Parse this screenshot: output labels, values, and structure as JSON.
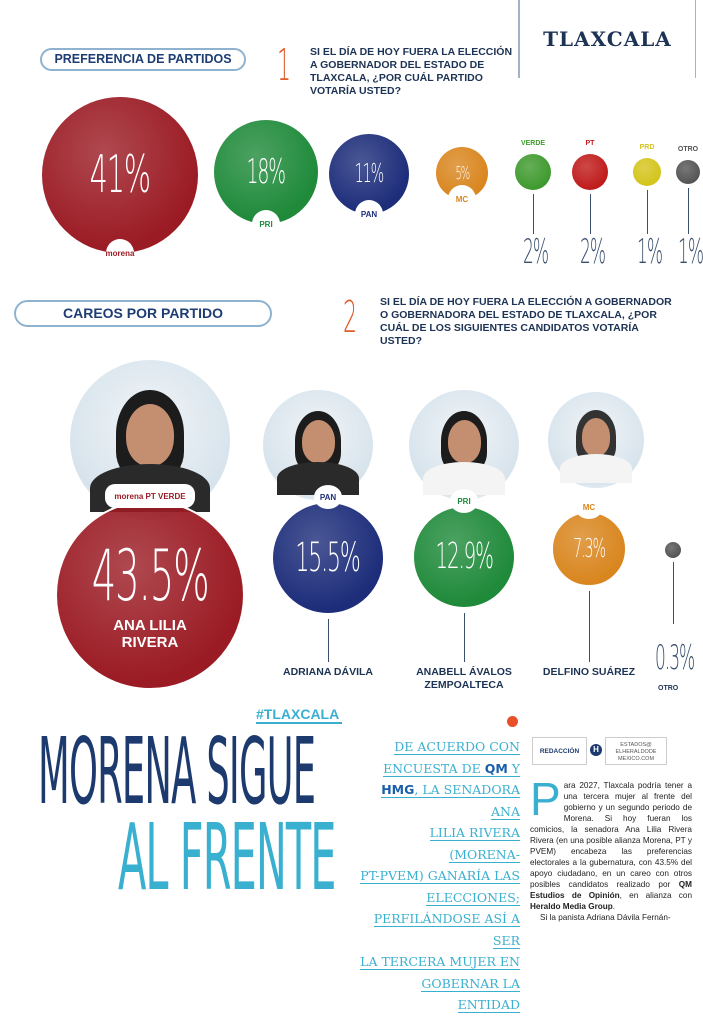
{
  "section_label": "TLAXCALA",
  "q1": {
    "title": "PREFERENCIA DE PARTIDOS",
    "number": "1",
    "question": "SI EL DÍA DE HOY FUERA LA ELECCIÓN A GOBERNADOR DEL ESTADO DE TLAXCALA, ¿POR CUÁL PARTIDO VOTARÍA USTED?",
    "parties": [
      {
        "party": "morena",
        "value": "41%",
        "color": "#9b1b24"
      },
      {
        "party": "PRI",
        "value": "18%",
        "color": "#1f8a3a"
      },
      {
        "party": "PAN",
        "value": "11%",
        "color": "#1d2d7a"
      },
      {
        "party": "MC",
        "value": "5%",
        "color": "#d9861f"
      },
      {
        "party": "VERDE",
        "value": "2%",
        "color": "#3f9a2e"
      },
      {
        "party": "PT",
        "value": "2%",
        "color": "#c01b1b"
      },
      {
        "party": "PRD",
        "value": "1%",
        "color": "#d4c41c"
      },
      {
        "party": "OTRO",
        "value": "1%",
        "color": "#555555"
      }
    ]
  },
  "q2": {
    "title": "CAREOS POR PARTIDO",
    "number": "2",
    "question": "SI EL DÍA DE HOY FUERA LA ELECCIÓN A GOBERNADOR O GOBERNADORA DEL ESTADO DE TLAXCALA, ¿POR CUÁL DE LOS SIGUIENTES CANDIDATOS VOTARÍA USTED?",
    "candidates": [
      {
        "name": "ANA LILIA RIVERA",
        "value": "43.5%",
        "parties": "morena PT VERDE",
        "color": "#9b1b24"
      },
      {
        "name": "ADRIANA DÁVILA",
        "value": "15.5%",
        "parties": "PAN",
        "color": "#1d2d7a"
      },
      {
        "name": "ANABELL ÁVALOS ZEMPOALTECA",
        "value": "12.9%",
        "parties": "PRI",
        "color": "#1f8a3a"
      },
      {
        "name": "DELFINO SUÁREZ",
        "value": "7.3%",
        "parties": "MC",
        "color": "#d9861f"
      },
      {
        "name": "OTRO",
        "value": "0.3%",
        "color": "#555555"
      }
    ]
  },
  "article": {
    "hashtag": "#TLAXCALA",
    "headline_1": "MORENA SIGUE",
    "headline_2": "AL FRENTE",
    "deck": [
      "DE ACUERDO CON",
      "ENCUESTA DE ",
      "QM",
      " Y",
      "HMG",
      ", LA SENADORA ANA",
      "LILIA RIVERA (MORENA-",
      "PT-PVEM) GANARÍA LAS",
      "ELECCIONES;",
      "PERFILÁNDOSE ASÍ A SER",
      "LA TERCERA MUJER EN",
      "GOBERNAR LA ENTIDAD"
    ],
    "byline": "REDACCIÓN",
    "email": "ESTADOS@ ELHERALDODE MEXICO.COM",
    "logo": "H",
    "dropcap": "P",
    "body_1": "ara 2027, Tlaxcala podría tener a una tercera mujer al frente del gobierno y un segundo periodo de Morena. Si hoy fueran los comicios, la senadora Ana Lilia Rivera Rivera (en una posible alianza Morena, PT y PVEM) encabeza las preferencias electorales a la gubernatura, con 43.5% del apoyo ciudadano, en un careo con otros posibles candidatos realizado por ",
    "body_b1": "QM Estudios de Opinión",
    "body_2": ", en alianza con ",
    "body_b2": "Heraldo Media Group",
    "body_3": ".",
    "body_4": "Si la panista Adriana Dávila Fernán-"
  }
}
